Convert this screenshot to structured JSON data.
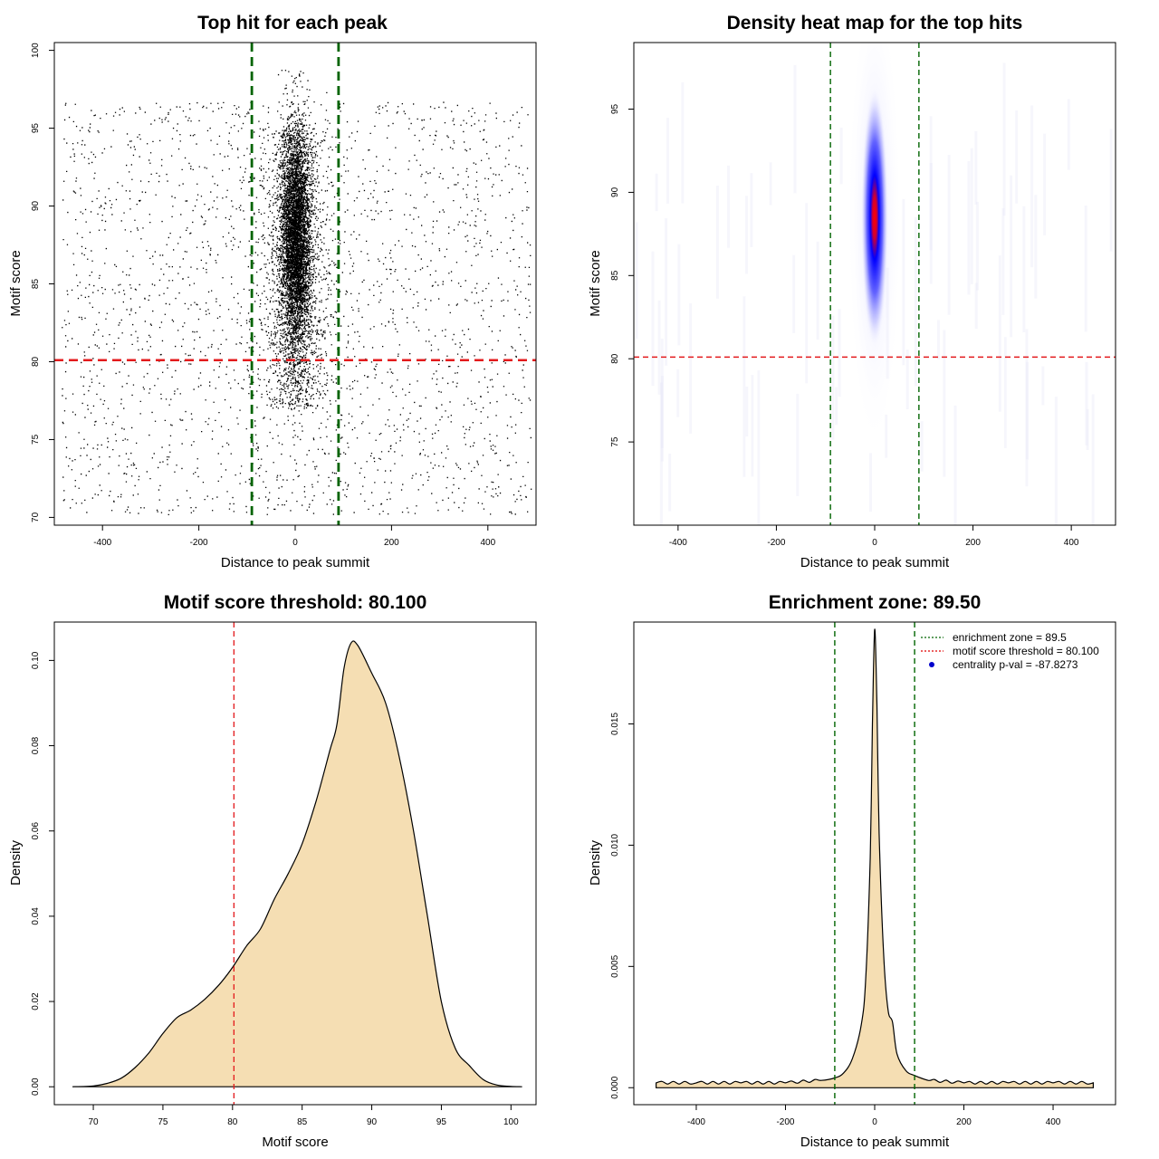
{
  "chart_data": [
    {
      "id": "scatter",
      "type": "scatter",
      "title": "Top hit for each peak",
      "xlabel": "Distance to peak summit",
      "ylabel": "Motif score",
      "xlim": [
        -500,
        500
      ],
      "ylim": [
        69.5,
        100.5
      ],
      "xticks": [
        -400,
        -200,
        0,
        200,
        400
      ],
      "yticks": [
        70,
        75,
        80,
        85,
        90,
        95,
        100
      ],
      "vlines": [
        -90,
        90
      ],
      "hline": 80.1,
      "point_count_approx": 12000,
      "points_description_note": "dense cluster near distance 0, scores 77-99; sparse background uniformly across -480..490, scores 70-97"
    },
    {
      "id": "heatmap",
      "type": "heatmap",
      "title": "Density heat map for the top hits",
      "xlabel": "Distance to peak summit",
      "ylabel": "Motif score",
      "xlim": [
        -490,
        490
      ],
      "ylim": [
        70,
        99
      ],
      "xticks": [
        -400,
        -200,
        0,
        200,
        400
      ],
      "yticks": [
        75,
        80,
        85,
        90,
        95
      ],
      "vlines": [
        -90,
        90
      ],
      "hline": 80.1,
      "peak": {
        "x": 0,
        "y": 88.5
      }
    },
    {
      "id": "density_score",
      "type": "area",
      "title": "Motif score threshold: 80.100",
      "xlabel": "Motif score",
      "ylabel": "Density",
      "xlim": [
        67.2,
        101.8
      ],
      "ylim": [
        -0.0042,
        0.109
      ],
      "xticks": [
        70,
        75,
        80,
        85,
        90,
        95,
        100
      ],
      "yticks": [
        "0.00",
        "0.02",
        "0.04",
        "0.06",
        "0.08",
        "0.10"
      ],
      "vline": 80.1,
      "x": [
        68.5,
        70,
        71,
        72,
        73,
        74,
        75,
        76,
        77,
        78,
        79,
        80,
        81,
        82,
        83,
        84,
        85,
        86,
        87,
        87.5,
        88,
        88.5,
        89,
        90,
        91,
        92,
        93,
        94,
        95,
        96,
        97,
        98,
        99,
        100,
        100.8
      ],
      "values": [
        0,
        0.0002,
        0.0008,
        0.002,
        0.0045,
        0.008,
        0.0125,
        0.0162,
        0.018,
        0.0205,
        0.0238,
        0.028,
        0.033,
        0.037,
        0.044,
        0.05,
        0.057,
        0.067,
        0.079,
        0.085,
        0.098,
        0.104,
        0.1035,
        0.097,
        0.09,
        0.077,
        0.06,
        0.04,
        0.02,
        0.009,
        0.005,
        0.0017,
        0.0004,
        0.0001,
        0
      ]
    },
    {
      "id": "density_distance",
      "type": "area",
      "title": "Enrichment zone: 89.50",
      "xlabel": "Distance to peak summit",
      "ylabel": "Density",
      "xlim": [
        -540,
        540
      ],
      "ylim": [
        -0.0007,
        0.0192
      ],
      "xticks": [
        -400,
        -200,
        0,
        200,
        400
      ],
      "yticks": [
        "0.000",
        "0.005",
        "0.010",
        "0.015"
      ],
      "vlines": [
        -89.5,
        89.5
      ],
      "x": [
        -490,
        -400,
        -300,
        -200,
        -120,
        -90,
        -70,
        -50,
        -30,
        -20,
        -10,
        -5,
        0,
        5,
        10,
        20,
        30,
        40,
        50,
        70,
        90,
        120,
        200,
        300,
        400,
        490
      ],
      "values": [
        0.0002,
        0.0002,
        0.0002,
        0.0002,
        0.0003,
        0.0004,
        0.0006,
        0.0012,
        0.0026,
        0.0045,
        0.0095,
        0.015,
        0.0189,
        0.0158,
        0.0105,
        0.0055,
        0.0032,
        0.0027,
        0.0014,
        0.0007,
        0.0005,
        0.0003,
        0.0002,
        0.0002,
        0.0002,
        0.0002
      ],
      "legend": {
        "position": "top-right",
        "items": [
          {
            "label": "enrichment zone = 89.5",
            "color": "#006400",
            "style": "dotted"
          },
          {
            "label": "motif score threshold = 80.100",
            "color": "#e00000",
            "style": "dotted"
          },
          {
            "label": "centrality p-val = -87.8273",
            "color": "#0000cc",
            "style": "point"
          }
        ]
      }
    }
  ],
  "colors": {
    "green_line": "#006400",
    "red_line": "#e31a1c",
    "fill": "#f5deb3",
    "heat_blue": "#0000ff",
    "heat_red": "#ff0000"
  }
}
